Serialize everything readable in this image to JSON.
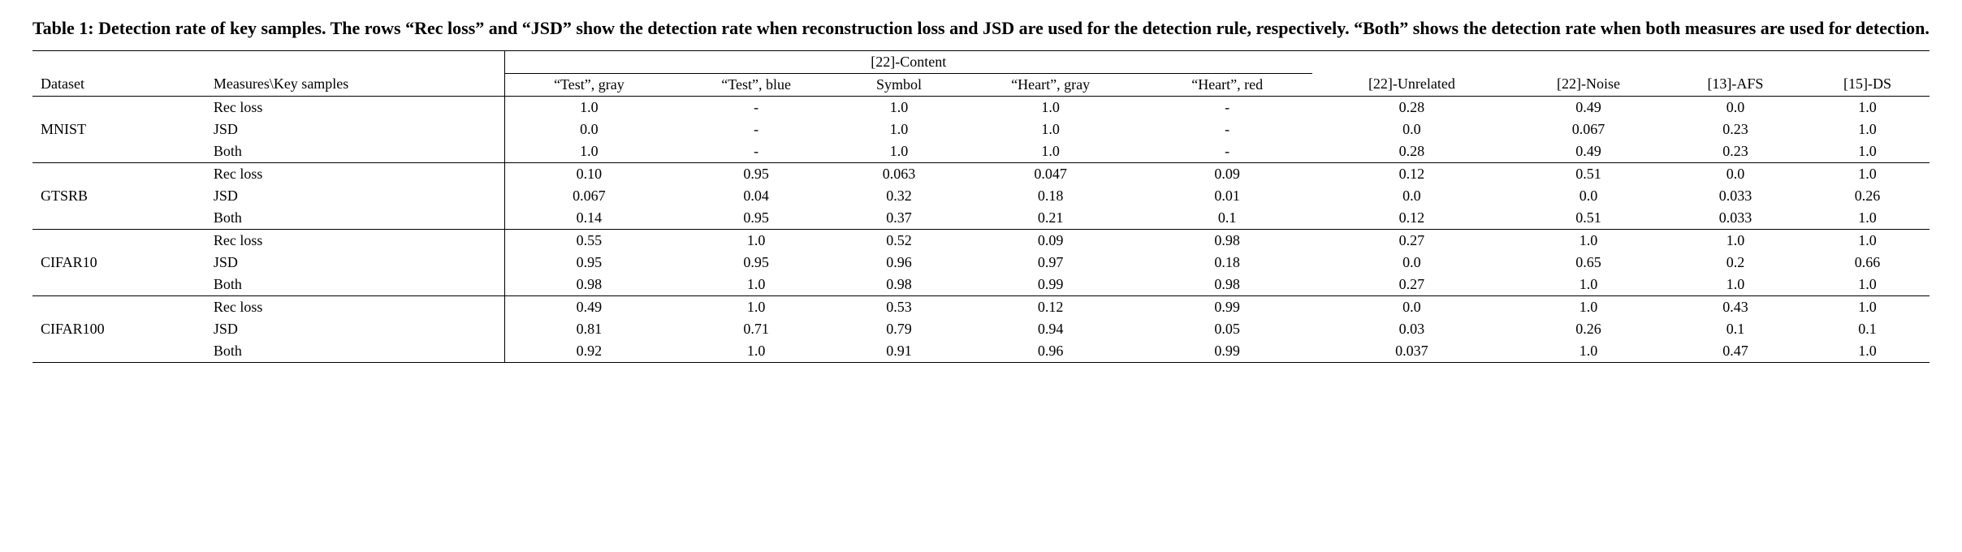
{
  "caption": "Table 1: Detection rate of key samples. The rows “Rec loss” and “JSD” show the detection rate when reconstruction loss and JSD are used for the detection rule, respectively. “Both” shows the detection rate when both measures are used for detection.",
  "headers": {
    "dataset": "Dataset",
    "measures": "Measures\\Key samples",
    "group_content": "[22]-Content",
    "content_cols": [
      "“Test”, gray",
      "“Test”, blue",
      "Symbol",
      "“Heart”, gray",
      "“Heart”, red"
    ],
    "other_cols": [
      "[22]-Unrelated",
      "[22]-Noise",
      "[13]-AFS",
      "[15]-DS"
    ]
  },
  "datasets": [
    {
      "name": "MNIST",
      "rows": [
        {
          "measure": "Rec loss",
          "vals": [
            "1.0",
            "-",
            "1.0",
            "1.0",
            "-",
            "0.28",
            "0.49",
            "0.0",
            "1.0"
          ]
        },
        {
          "measure": "JSD",
          "vals": [
            "0.0",
            "-",
            "1.0",
            "1.0",
            "-",
            "0.0",
            "0.067",
            "0.23",
            "1.0"
          ]
        },
        {
          "measure": "Both",
          "vals": [
            "1.0",
            "-",
            "1.0",
            "1.0",
            "-",
            "0.28",
            "0.49",
            "0.23",
            "1.0"
          ]
        }
      ]
    },
    {
      "name": "GTSRB",
      "rows": [
        {
          "measure": "Rec loss",
          "vals": [
            "0.10",
            "0.95",
            "0.063",
            "0.047",
            "0.09",
            "0.12",
            "0.51",
            "0.0",
            "1.0"
          ]
        },
        {
          "measure": "JSD",
          "vals": [
            "0.067",
            "0.04",
            "0.32",
            "0.18",
            "0.01",
            "0.0",
            "0.0",
            "0.033",
            "0.26"
          ]
        },
        {
          "measure": "Both",
          "vals": [
            "0.14",
            "0.95",
            "0.37",
            "0.21",
            "0.1",
            "0.12",
            "0.51",
            "0.033",
            "1.0"
          ]
        }
      ]
    },
    {
      "name": "CIFAR10",
      "rows": [
        {
          "measure": "Rec loss",
          "vals": [
            "0.55",
            "1.0",
            "0.52",
            "0.09",
            "0.98",
            "0.27",
            "1.0",
            "1.0",
            "1.0"
          ]
        },
        {
          "measure": "JSD",
          "vals": [
            "0.95",
            "0.95",
            "0.96",
            "0.97",
            "0.18",
            "0.0",
            "0.65",
            "0.2",
            "0.66"
          ]
        },
        {
          "measure": "Both",
          "vals": [
            "0.98",
            "1.0",
            "0.98",
            "0.99",
            "0.98",
            "0.27",
            "1.0",
            "1.0",
            "1.0"
          ]
        }
      ]
    },
    {
      "name": "CIFAR100",
      "rows": [
        {
          "measure": "Rec loss",
          "vals": [
            "0.49",
            "1.0",
            "0.53",
            "0.12",
            "0.99",
            "0.0",
            "1.0",
            "0.43",
            "1.0"
          ]
        },
        {
          "measure": "JSD",
          "vals": [
            "0.81",
            "0.71",
            "0.79",
            "0.94",
            "0.05",
            "0.03",
            "0.26",
            "0.1",
            "0.1"
          ]
        },
        {
          "measure": "Both",
          "vals": [
            "0.92",
            "1.0",
            "0.91",
            "0.96",
            "0.99",
            "0.037",
            "1.0",
            "0.47",
            "1.0"
          ]
        }
      ]
    }
  ]
}
